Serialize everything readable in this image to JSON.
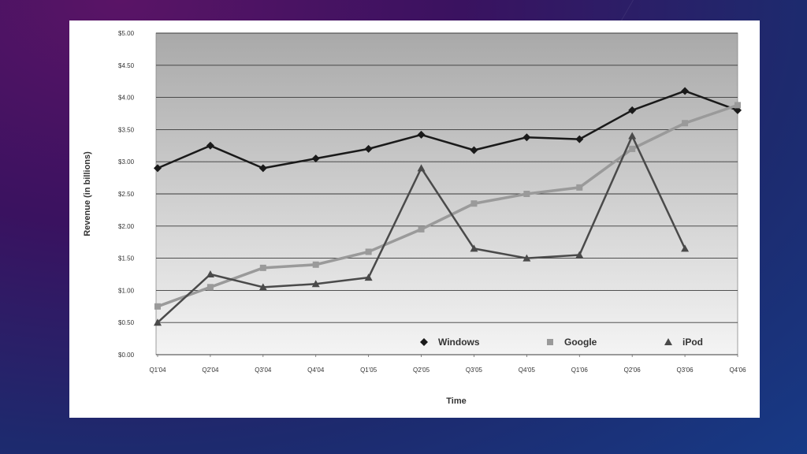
{
  "chart_data": {
    "type": "line",
    "title": "",
    "xlabel": "Time",
    "ylabel": "Revenue (in billions)",
    "categories": [
      "Q1'04",
      "Q2'04",
      "Q3'04",
      "Q4'04",
      "Q1'05",
      "Q2'05",
      "Q3'05",
      "Q4'05",
      "Q1'06",
      "Q2'06",
      "Q3'06",
      "Q4'06"
    ],
    "y_ticks": [
      "$0.00",
      "$0.50",
      "$1.00",
      "$1.50",
      "$2.00",
      "$2.50",
      "$3.00",
      "$3.50",
      "$4.00",
      "$4.50",
      "$5.00"
    ],
    "ylim": [
      0,
      5
    ],
    "grid": true,
    "legend_position": "bottom-right",
    "series": [
      {
        "name": "Windows",
        "color": "#1a1a1a",
        "marker": "diamond",
        "values": [
          2.9,
          3.25,
          2.9,
          3.05,
          3.2,
          3.42,
          3.18,
          3.38,
          3.35,
          3.8,
          4.1,
          3.8
        ]
      },
      {
        "name": "Google",
        "color": "#9a9a9a",
        "marker": "square",
        "values": [
          0.75,
          1.05,
          1.35,
          1.4,
          1.6,
          1.95,
          2.35,
          2.5,
          2.6,
          3.2,
          3.6,
          3.88
        ]
      },
      {
        "name": "iPod",
        "color": "#4a4a4a",
        "marker": "triangle",
        "values": [
          0.5,
          1.25,
          1.05,
          1.1,
          1.2,
          2.9,
          1.65,
          1.5,
          1.55,
          3.4,
          1.65,
          null
        ]
      }
    ]
  }
}
